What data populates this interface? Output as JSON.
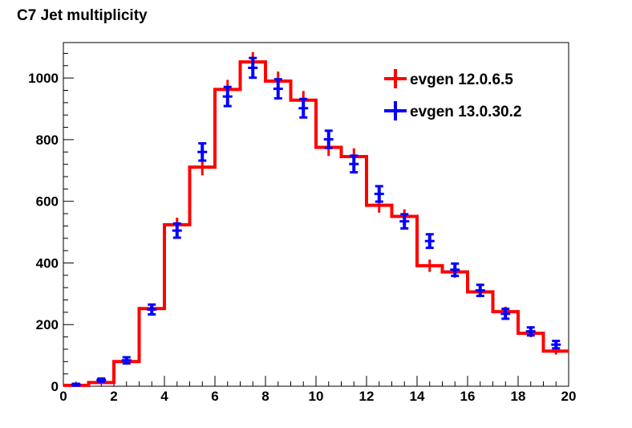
{
  "chart_data": {
    "type": "histogram",
    "title": "C7 Jet multiplicity",
    "xlabel": "",
    "ylabel": "",
    "xlim": [
      0,
      20
    ],
    "ylim": [
      0,
      1115
    ],
    "x_ticks": [
      0,
      2,
      4,
      6,
      8,
      10,
      12,
      14,
      16,
      18,
      20
    ],
    "y_ticks": [
      0,
      200,
      400,
      600,
      800,
      1000
    ],
    "bin_edges": [
      0,
      1,
      2,
      3,
      4,
      5,
      6,
      7,
      8,
      9,
      10,
      11,
      12,
      13,
      14,
      15,
      16,
      17,
      18,
      19,
      20
    ],
    "grid": false,
    "legend_position": "top-right",
    "series": [
      {
        "name": "evgen 12.0.6.5",
        "style": "step-with-errorbars",
        "color": "#ff0000",
        "values": [
          3,
          12,
          80,
          252,
          524,
          711,
          963,
          1052,
          990,
          928,
          775,
          745,
          587,
          551,
          391,
          371,
          306,
          242,
          172,
          114
        ],
        "errors": [
          3,
          5,
          10,
          16,
          23,
          27,
          31,
          32,
          31,
          30,
          28,
          27,
          24,
          23,
          20,
          19,
          17,
          16,
          13,
          11
        ]
      },
      {
        "name": "evgen 13.0.30.2",
        "style": "errorbars",
        "color": "#0000ff",
        "values": [
          5,
          20,
          84,
          249,
          505,
          760,
          940,
          1033,
          965,
          902,
          801,
          721,
          624,
          535,
          471,
          378,
          311,
          235,
          178,
          135
        ],
        "errors": [
          3,
          5,
          10,
          16,
          23,
          28,
          31,
          32,
          31,
          30,
          28,
          27,
          25,
          23,
          22,
          20,
          18,
          16,
          13,
          12
        ]
      }
    ]
  },
  "colors": {
    "background": "#ffffff",
    "axis": "#000000",
    "series_1": "#ff0000",
    "series_2": "#0000ff"
  }
}
